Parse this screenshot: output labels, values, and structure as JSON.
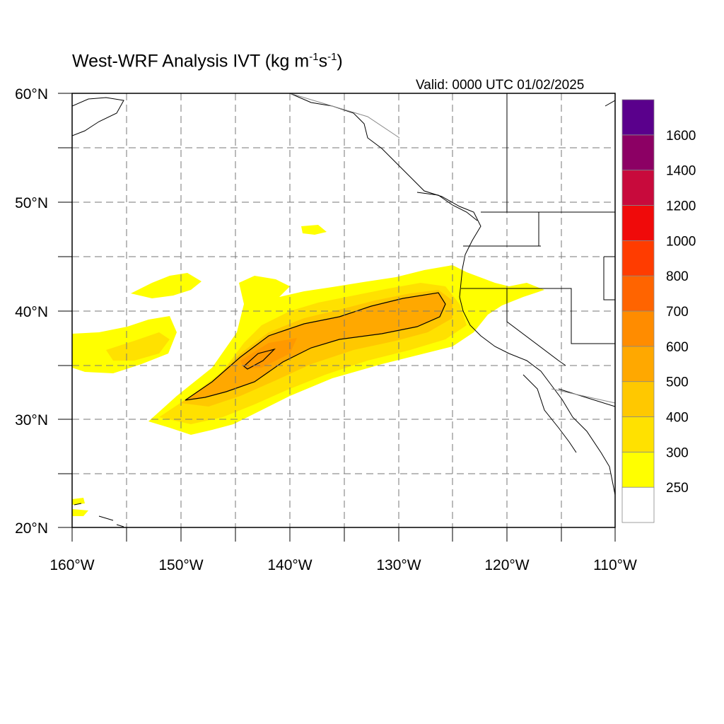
{
  "title": {
    "text": "West-WRF Analysis IVT (kg m",
    "exp1": "-1",
    "mid": "s",
    "exp2": "-1",
    "end": ")"
  },
  "valid": "Valid: 0000 UTC 01/02/2025",
  "axes": {
    "lon_ticks": [
      "160°W",
      "150°W",
      "140°W",
      "130°W",
      "120°W",
      "110°W"
    ],
    "lat_ticks": [
      "20°N",
      "30°N",
      "40°N",
      "50°N",
      "60°N"
    ],
    "lon_range": [
      -160,
      -110
    ],
    "lat_range": [
      20,
      60
    ],
    "grid": true
  },
  "colorbar": {
    "labels": [
      "250",
      "300",
      "400",
      "500",
      "600",
      "700",
      "800",
      "1000",
      "1200",
      "1400",
      "1600"
    ],
    "colors": [
      "#ffffff",
      "#ffff00",
      "#ffe100",
      "#ffc800",
      "#ffa800",
      "#ff8c00",
      "#ff6400",
      "#ff3c00",
      "#f00a0a",
      "#c80a3c",
      "#8c0064",
      "#5a008c"
    ]
  },
  "chart_data": {
    "type": "heatmap",
    "variable": "IVT",
    "units": "kg m-1s-1",
    "contour_levels": [
      250,
      300,
      400,
      500,
      600,
      700,
      800,
      1000,
      1200,
      1400,
      1600
    ],
    "outlined_contour": 500,
    "max_ivt_estimate": 600
  }
}
